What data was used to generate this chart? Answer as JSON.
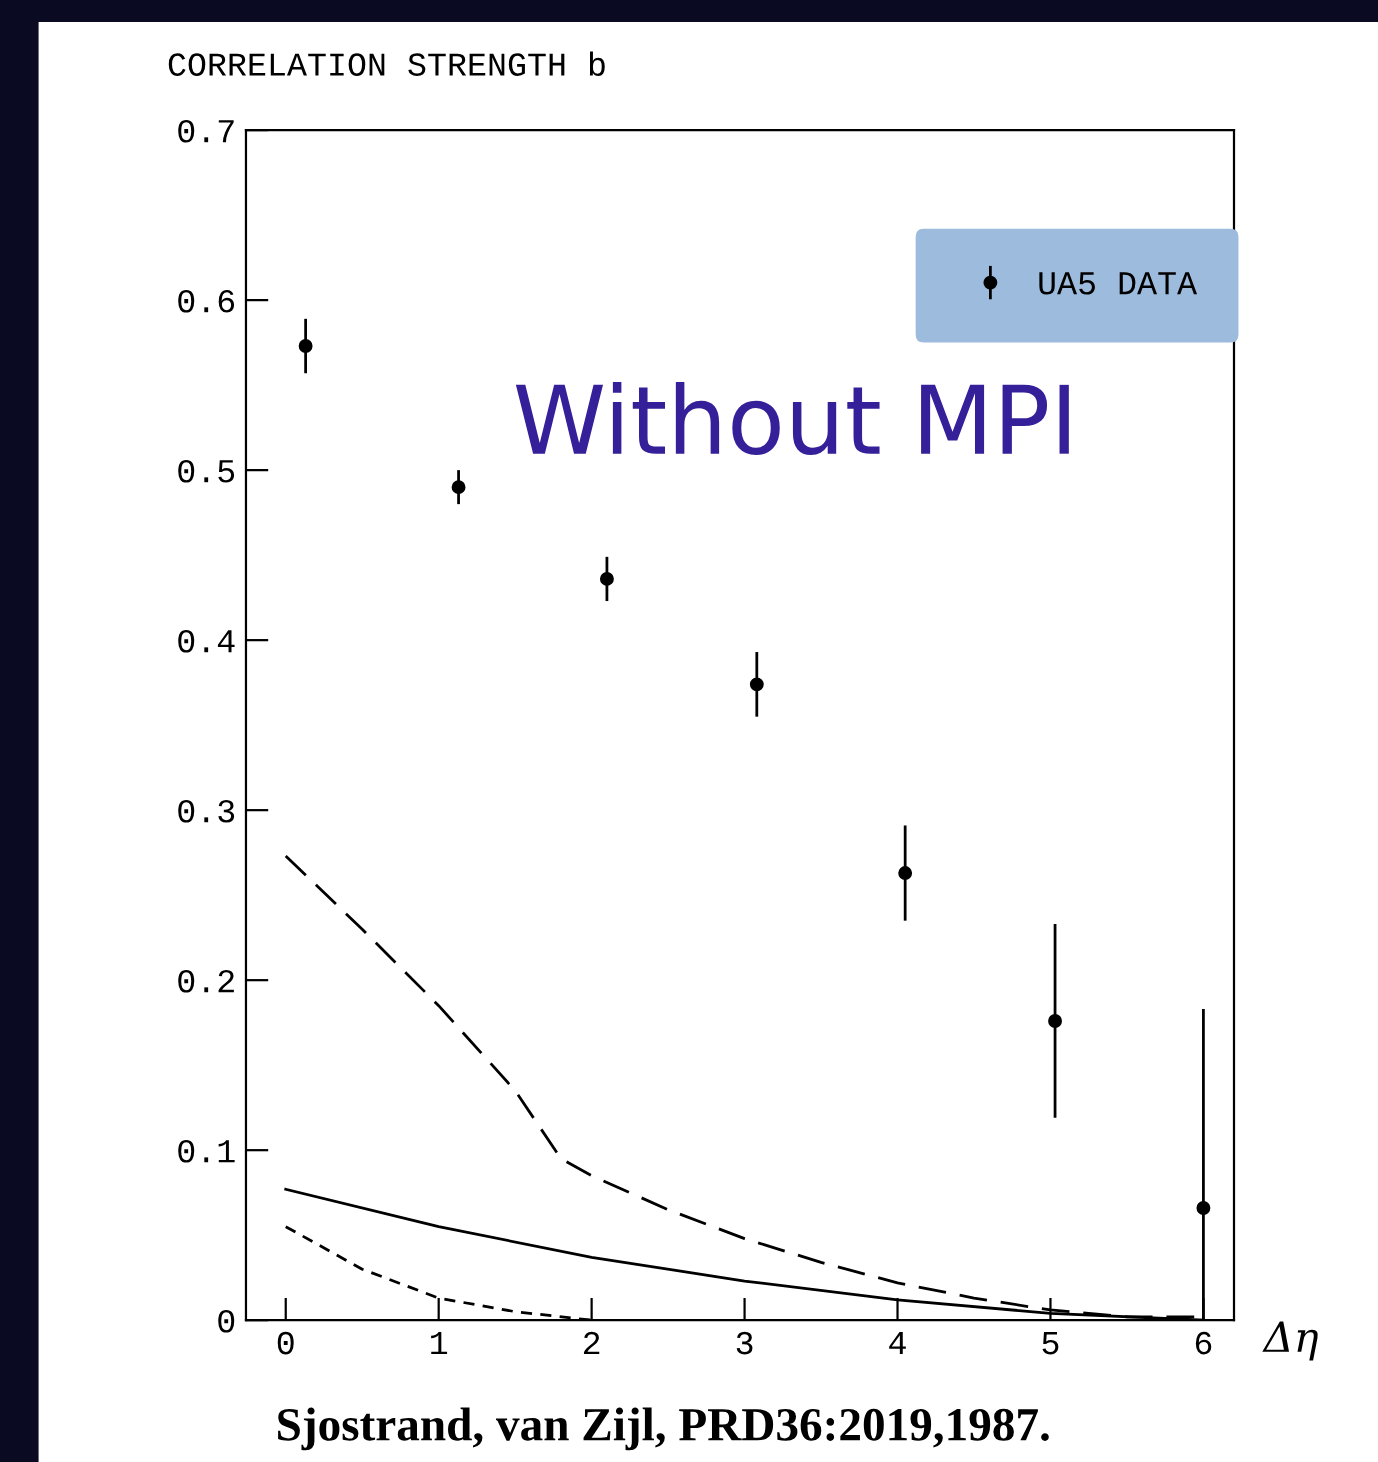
{
  "chart_data": {
    "type": "scatter",
    "ylabel": "CORRELATION STRENGTH b",
    "xlabel": "Δη",
    "annotations": [
      "Without MPI",
      "Sjostrand, van Zijl, PRD36:2019,1987."
    ],
    "xlim": [
      -0.26,
      6.2
    ],
    "xticks": [
      0,
      1,
      2,
      3,
      4,
      5,
      6
    ],
    "ylim": [
      0,
      0.7
    ],
    "yticks": [
      0,
      0.1,
      0.2,
      0.3,
      0.4,
      0.5,
      0.6,
      0.7
    ],
    "legend": "top right",
    "grid": false,
    "series": [
      {
        "name": "UA5 DATA",
        "color": "#000000",
        "marker": "circle",
        "x": [
          0.13,
          1.13,
          2.1,
          3.08,
          4.05,
          5.03,
          6.0
        ],
        "values": [
          0.573,
          0.49,
          0.436,
          0.374,
          0.263,
          0.176,
          0.066
        ],
        "errors": [
          0.016,
          0.01,
          0.013,
          0.019,
          0.028,
          0.057,
          [
            0.0,
            0.183
          ]
        ]
      },
      {
        "type": "line",
        "color": "#000000",
        "line_style": "dashed",
        "x": [
          0,
          0.5,
          1,
          1.5,
          1.8,
          2,
          2.5,
          3,
          3.5,
          4,
          4.5,
          5,
          5.5,
          6
        ],
        "values": [
          0.273,
          0.23,
          0.185,
          0.135,
          0.095,
          0.085,
          0.065,
          0.048,
          0.034,
          0.022,
          0.013,
          0.006,
          0.002,
          0.002
        ]
      },
      {
        "type": "line",
        "color": "#000000",
        "line_style": "solid",
        "x": [
          0,
          1,
          2,
          3,
          4,
          5,
          6
        ],
        "values": [
          0.077,
          0.055,
          0.037,
          0.023,
          0.012,
          0.004,
          0.0
        ]
      },
      {
        "type": "line",
        "color": "#000000",
        "line_style": "dotted",
        "x": [
          0,
          0.5,
          1,
          1.5,
          2
        ],
        "values": [
          0.055,
          0.03,
          0.013,
          0.005,
          0.0
        ]
      }
    ]
  }
}
